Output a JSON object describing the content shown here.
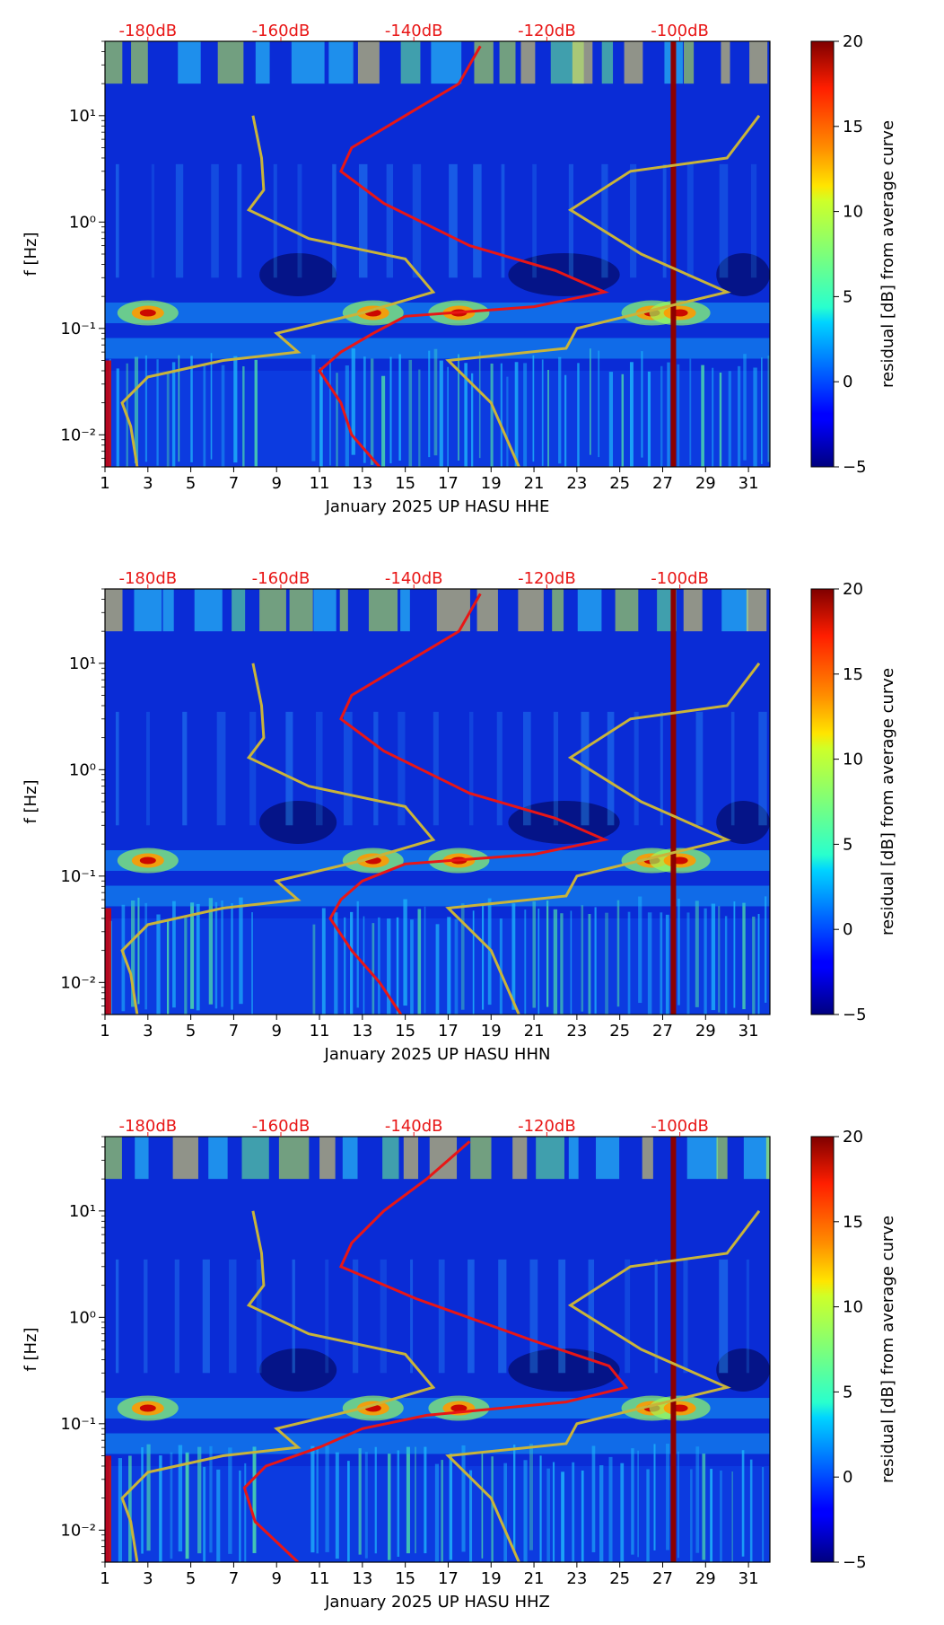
{
  "chart_data": [
    {
      "type": "heatmap",
      "channel": "HHE",
      "xlabel": "January 2025 UP HASU  HHE",
      "ylabel": "f [Hz]",
      "x_ticks": [
        "1",
        "3",
        "5",
        "7",
        "9",
        "11",
        "13",
        "15",
        "17",
        "19",
        "21",
        "23",
        "25",
        "27",
        "29",
        "31"
      ],
      "y_ticks": [
        "10⁻²",
        "10⁻¹",
        "10⁰",
        "10¹"
      ],
      "xlim": [
        1,
        32
      ],
      "ylim": [
        0.005,
        50
      ],
      "top_scale_labels": [
        "-180dB",
        "-160dB",
        "-140dB",
        "-120dB",
        "-100dB"
      ],
      "colorbar": {
        "label": "residual [dB] from average curve",
        "ticks": [
          "−5",
          "0",
          "5",
          "10",
          "15",
          "20"
        ],
        "range": [
          -5,
          20
        ],
        "colormap": "jet"
      },
      "dominant_energy_bands_hz": [
        0.14,
        0.065
      ],
      "notable_events_day": [
        3,
        13.5,
        17.5,
        26.5,
        27.8
      ],
      "saturated_column_day": 27.5,
      "red_curve": {
        "name": "average PSD (dB scale, top axis)",
        "points": [
          [
            45,
            18.5
          ],
          [
            20,
            17.5
          ],
          [
            10,
            15.0
          ],
          [
            5,
            12.5
          ],
          [
            3,
            12.0
          ],
          [
            1.5,
            14.0
          ],
          [
            0.6,
            18.0
          ],
          [
            0.35,
            22.0
          ],
          [
            0.22,
            24.3
          ],
          [
            0.16,
            21.0
          ],
          [
            0.13,
            15.0
          ],
          [
            0.09,
            13.5
          ],
          [
            0.06,
            12.0
          ],
          [
            0.04,
            11.0
          ],
          [
            0.02,
            12.0
          ],
          [
            0.01,
            12.5
          ],
          [
            0.005,
            13.8
          ]
        ]
      },
      "yellow_curves": [
        {
          "name": "noise model left",
          "points": [
            [
              10,
              7.9
            ],
            [
              4,
              8.3
            ],
            [
              2,
              8.4
            ],
            [
              1.3,
              7.7
            ],
            [
              0.7,
              10.5
            ],
            [
              0.45,
              15.0
            ],
            [
              0.22,
              16.3
            ],
            [
              0.14,
              13.0
            ],
            [
              0.09,
              9.0
            ],
            [
              0.06,
              10.0
            ],
            [
              0.05,
              6.5
            ],
            [
              0.035,
              3.0
            ],
            [
              0.02,
              1.8
            ],
            [
              0.012,
              2.2
            ],
            [
              0.005,
              2.5
            ]
          ]
        },
        {
          "name": "noise model right",
          "points": [
            [
              10,
              31.5
            ],
            [
              4,
              30.0
            ],
            [
              3,
              25.5
            ],
            [
              1.3,
              22.7
            ],
            [
              0.5,
              26.0
            ],
            [
              0.22,
              30.0
            ],
            [
              0.1,
              23.0
            ],
            [
              0.065,
              22.5
            ],
            [
              0.05,
              17.0
            ],
            [
              0.02,
              19.0
            ],
            [
              0.005,
              20.3
            ]
          ]
        }
      ]
    },
    {
      "type": "heatmap",
      "channel": "HHN",
      "xlabel": "January 2025 UP HASU  HHN",
      "ylabel": "f [Hz]",
      "x_ticks": [
        "1",
        "3",
        "5",
        "7",
        "9",
        "11",
        "13",
        "15",
        "17",
        "19",
        "21",
        "23",
        "25",
        "27",
        "29",
        "31"
      ],
      "y_ticks": [
        "10⁻²",
        "10⁻¹",
        "10⁰",
        "10¹"
      ],
      "xlim": [
        1,
        32
      ],
      "ylim": [
        0.005,
        50
      ],
      "top_scale_labels": [
        "-180dB",
        "-160dB",
        "-140dB",
        "-120dB",
        "-100dB"
      ],
      "colorbar": {
        "label": "residual [dB] from average curve",
        "ticks": [
          "−5",
          "0",
          "5",
          "10",
          "15",
          "20"
        ],
        "range": [
          -5,
          20
        ],
        "colormap": "jet"
      },
      "dominant_energy_bands_hz": [
        0.14,
        0.065
      ],
      "notable_events_day": [
        3,
        13.5,
        17.5,
        26.5,
        27.8
      ],
      "saturated_column_day": 27.5,
      "red_curve": {
        "name": "average PSD (dB scale, top axis)",
        "points": [
          [
            45,
            18.5
          ],
          [
            20,
            17.5
          ],
          [
            10,
            15.0
          ],
          [
            5,
            12.5
          ],
          [
            3,
            12.0
          ],
          [
            1.5,
            14.0
          ],
          [
            0.6,
            18.0
          ],
          [
            0.35,
            22.0
          ],
          [
            0.22,
            24.3
          ],
          [
            0.16,
            21.0
          ],
          [
            0.13,
            15.0
          ],
          [
            0.09,
            13.0
          ],
          [
            0.06,
            12.0
          ],
          [
            0.04,
            11.5
          ],
          [
            0.02,
            12.5
          ],
          [
            0.01,
            13.8
          ],
          [
            0.005,
            14.8
          ]
        ]
      },
      "yellow_curves": [
        {
          "name": "noise model left",
          "points": [
            [
              10,
              7.9
            ],
            [
              4,
              8.3
            ],
            [
              2,
              8.4
            ],
            [
              1.3,
              7.7
            ],
            [
              0.7,
              10.5
            ],
            [
              0.45,
              15.0
            ],
            [
              0.22,
              16.3
            ],
            [
              0.14,
              13.0
            ],
            [
              0.09,
              9.0
            ],
            [
              0.06,
              10.0
            ],
            [
              0.05,
              6.5
            ],
            [
              0.035,
              3.0
            ],
            [
              0.02,
              1.8
            ],
            [
              0.012,
              2.2
            ],
            [
              0.005,
              2.5
            ]
          ]
        },
        {
          "name": "noise model right",
          "points": [
            [
              10,
              31.5
            ],
            [
              4,
              30.0
            ],
            [
              3,
              25.5
            ],
            [
              1.3,
              22.7
            ],
            [
              0.5,
              26.0
            ],
            [
              0.22,
              30.0
            ],
            [
              0.1,
              23.0
            ],
            [
              0.065,
              22.5
            ],
            [
              0.05,
              17.0
            ],
            [
              0.02,
              19.0
            ],
            [
              0.005,
              20.3
            ]
          ]
        }
      ]
    },
    {
      "type": "heatmap",
      "channel": "HHZ",
      "xlabel": "January 2025 UP HASU  HHZ",
      "ylabel": "f [Hz]",
      "x_ticks": [
        "1",
        "3",
        "5",
        "7",
        "9",
        "11",
        "13",
        "15",
        "17",
        "19",
        "21",
        "23",
        "25",
        "27",
        "29",
        "31"
      ],
      "y_ticks": [
        "10⁻²",
        "10⁻¹",
        "10⁰",
        "10¹"
      ],
      "xlim": [
        1,
        32
      ],
      "ylim": [
        0.005,
        50
      ],
      "top_scale_labels": [
        "-180dB",
        "-160dB",
        "-140dB",
        "-120dB",
        "-100dB"
      ],
      "colorbar": {
        "label": "residual [dB] from average curve",
        "ticks": [
          "−5",
          "0",
          "5",
          "10",
          "15",
          "20"
        ],
        "range": [
          -5,
          20
        ],
        "colormap": "jet"
      },
      "dominant_energy_bands_hz": [
        0.14,
        0.065
      ],
      "notable_events_day": [
        3,
        13.5,
        17.5,
        26.5,
        27.8
      ],
      "saturated_column_day": 27.5,
      "red_curve": {
        "name": "average PSD (dB scale, top axis)",
        "points": [
          [
            45,
            18.0
          ],
          [
            20,
            16.0
          ],
          [
            10,
            14.0
          ],
          [
            5,
            12.5
          ],
          [
            3,
            12.0
          ],
          [
            1.5,
            15.5
          ],
          [
            0.6,
            21.0
          ],
          [
            0.35,
            24.5
          ],
          [
            0.22,
            25.3
          ],
          [
            0.16,
            22.5
          ],
          [
            0.12,
            16.0
          ],
          [
            0.09,
            13.0
          ],
          [
            0.06,
            11.0
          ],
          [
            0.04,
            8.5
          ],
          [
            0.025,
            7.5
          ],
          [
            0.012,
            8.0
          ],
          [
            0.005,
            10.0
          ]
        ]
      },
      "yellow_curves": [
        {
          "name": "noise model left",
          "points": [
            [
              10,
              7.9
            ],
            [
              4,
              8.3
            ],
            [
              2,
              8.4
            ],
            [
              1.3,
              7.7
            ],
            [
              0.7,
              10.5
            ],
            [
              0.45,
              15.0
            ],
            [
              0.22,
              16.3
            ],
            [
              0.14,
              13.0
            ],
            [
              0.09,
              9.0
            ],
            [
              0.06,
              10.0
            ],
            [
              0.05,
              6.5
            ],
            [
              0.035,
              3.0
            ],
            [
              0.02,
              1.8
            ],
            [
              0.012,
              2.2
            ],
            [
              0.005,
              2.5
            ]
          ]
        },
        {
          "name": "noise model right",
          "points": [
            [
              10,
              31.5
            ],
            [
              4,
              30.0
            ],
            [
              3,
              25.5
            ],
            [
              1.3,
              22.7
            ],
            [
              0.5,
              26.0
            ],
            [
              0.22,
              30.0
            ],
            [
              0.1,
              23.0
            ],
            [
              0.065,
              22.5
            ],
            [
              0.05,
              17.0
            ],
            [
              0.02,
              19.0
            ],
            [
              0.005,
              20.3
            ]
          ]
        }
      ]
    }
  ]
}
